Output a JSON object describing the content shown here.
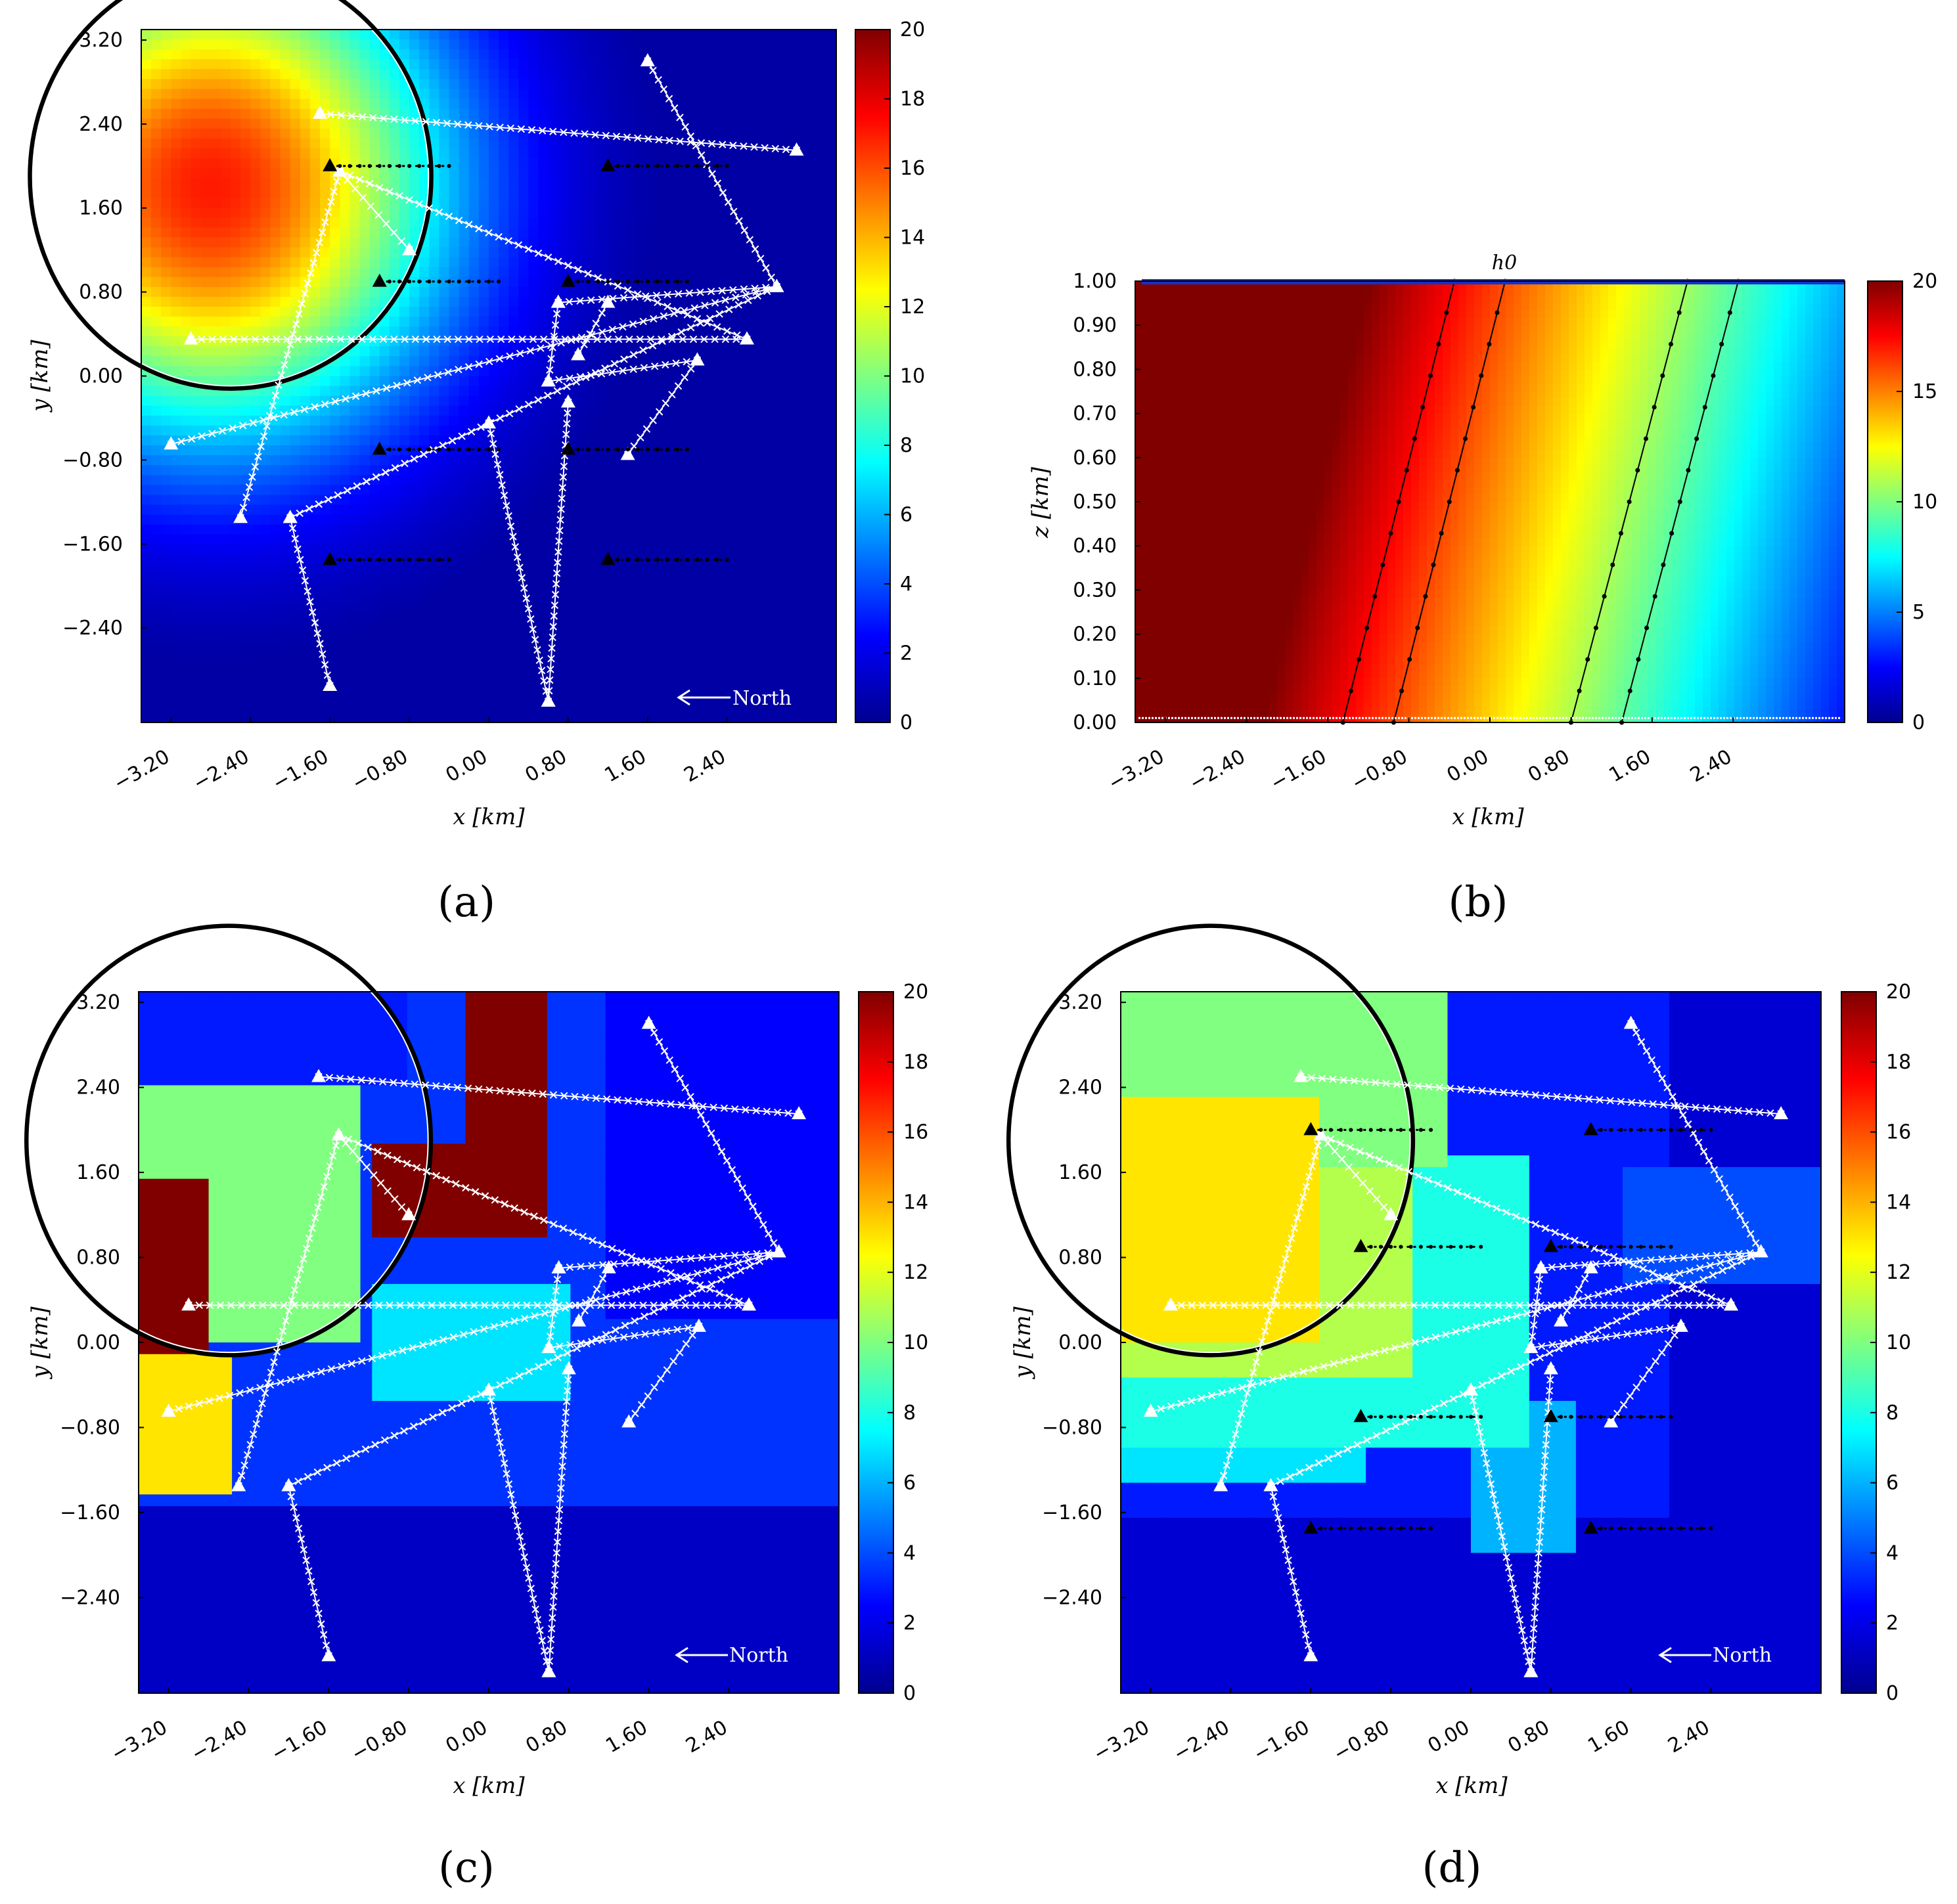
{
  "chart_data": [
    {
      "id": "a",
      "type": "heatmap",
      "caption": "(a)",
      "xlabel": "x [km]",
      "ylabel": "y [km]",
      "xticks": [
        "−3.20",
        "−2.40",
        "−1.60",
        "−0.80",
        "0.00",
        "0.80",
        "1.60",
        "2.40"
      ],
      "yticks": [
        "3.20",
        "2.40",
        "1.60",
        "0.80",
        "0.00",
        "−0.80",
        "−1.60",
        "−2.40"
      ],
      "xlim": [
        -3.2,
        3.2
      ],
      "ylim": [
        -3.2,
        3.2
      ],
      "colorbar": {
        "min": 0,
        "max": 20,
        "ticks": [
          "0",
          "2",
          "4",
          "6",
          "8",
          "10",
          "12",
          "14",
          "16",
          "18",
          "20"
        ]
      },
      "field": "smooth",
      "north_label": "North",
      "show_sources": true,
      "circle": true
    },
    {
      "id": "b",
      "type": "heatmap",
      "caption": "(b)",
      "title": "h0",
      "xlabel": "x [km]",
      "ylabel": "z [km]",
      "xticks": [
        "−3.20",
        "−2.40",
        "−1.60",
        "−0.80",
        "0.00",
        "0.80",
        "1.60",
        "2.40"
      ],
      "yticks": [
        "1.00",
        "0.90",
        "0.80",
        "0.70",
        "0.60",
        "0.50",
        "0.40",
        "0.30",
        "0.20",
        "0.10",
        "0.00"
      ],
      "xlim": [
        -3.2,
        3.2
      ],
      "ylim": [
        0,
        1
      ],
      "colorbar": {
        "min": 0,
        "max": 20,
        "ticks": [
          "20",
          "15",
          "10",
          "5",
          "0"
        ]
      },
      "field": "vertical"
    },
    {
      "id": "c",
      "type": "heatmap",
      "caption": "(c)",
      "xlabel": "x [km]",
      "ylabel": "y [km]",
      "xticks": [
        "−3.20",
        "−2.40",
        "−1.60",
        "−0.80",
        "0.00",
        "0.80",
        "1.60",
        "2.40"
      ],
      "yticks": [
        "3.20",
        "2.40",
        "1.60",
        "0.80",
        "0.00",
        "−0.80",
        "−1.60",
        "−2.40"
      ],
      "xlim": [
        -3.2,
        3.2
      ],
      "ylim": [
        -3.2,
        3.2
      ],
      "colorbar": {
        "min": 0,
        "max": 20,
        "ticks": [
          "0",
          "2",
          "4",
          "6",
          "8",
          "10",
          "12",
          "14",
          "16",
          "18",
          "20"
        ]
      },
      "field": "blocky_c",
      "north_label": "North",
      "show_sources": false,
      "circle": true
    },
    {
      "id": "d",
      "type": "heatmap",
      "caption": "(d)",
      "xlabel": "x [km]",
      "ylabel": "y [km]",
      "xticks": [
        "−3.20",
        "−2.40",
        "−1.60",
        "−0.80",
        "0.00",
        "0.80",
        "1.60",
        "2.40"
      ],
      "yticks": [
        "3.20",
        "2.40",
        "1.60",
        "0.80",
        "0.00",
        "−0.80",
        "−1.60",
        "−2.40"
      ],
      "xlim": [
        -3.2,
        3.2
      ],
      "ylim": [
        -3.2,
        3.2
      ],
      "colorbar": {
        "min": 0,
        "max": 20,
        "ticks": [
          "0",
          "2",
          "4",
          "6",
          "8",
          "10",
          "12",
          "14",
          "16",
          "18",
          "20"
        ]
      },
      "field": "blocky_d",
      "north_label": "North",
      "show_sources": true,
      "circle": true
    }
  ],
  "survey": {
    "profiles": [
      [
        [
          -1.7,
          2.5
        ],
        [
          3.1,
          2.15
        ]
      ],
      [
        [
          -1.5,
          1.95
        ],
        [
          -2.5,
          -1.35
        ]
      ],
      [
        [
          -1.5,
          1.95
        ],
        [
          -0.8,
          1.2
        ]
      ],
      [
        [
          -1.5,
          1.95
        ],
        [
          2.6,
          0.35
        ]
      ],
      [
        [
          -3.0,
          0.35
        ],
        [
          2.6,
          0.35
        ]
      ],
      [
        [
          -3.2,
          -0.65
        ],
        [
          2.9,
          0.85
        ]
      ],
      [
        [
          -2.0,
          -1.35
        ],
        [
          2.9,
          0.85
        ]
      ],
      [
        [
          1.6,
          3.0
        ],
        [
          2.9,
          0.85
        ]
      ],
      [
        [
          -2.0,
          -1.35
        ],
        [
          -1.6,
          -2.95
        ]
      ],
      [
        [
          0.0,
          -0.45
        ],
        [
          0.6,
          -3.1
        ]
      ],
      [
        [
          0.8,
          -0.25
        ],
        [
          0.6,
          -3.1
        ]
      ],
      [
        [
          0.6,
          -0.05
        ],
        [
          0.7,
          0.7
        ]
      ],
      [
        [
          0.6,
          -0.05
        ],
        [
          2.1,
          0.15
        ]
      ],
      [
        [
          1.4,
          -0.75
        ],
        [
          2.1,
          0.15
        ]
      ],
      [
        [
          0.7,
          0.7
        ],
        [
          2.9,
          0.85
        ]
      ],
      [
        [
          0.9,
          0.2
        ],
        [
          1.2,
          0.7
        ]
      ]
    ],
    "sources": [
      [
        -1.6,
        2.0
      ],
      [
        1.2,
        2.0
      ],
      [
        -1.1,
        0.9
      ],
      [
        0.8,
        0.9
      ],
      [
        -1.1,
        -0.7
      ],
      [
        0.8,
        -0.7
      ],
      [
        -1.6,
        -1.75
      ],
      [
        1.2,
        -1.75
      ]
    ],
    "source_length": 1.2,
    "circle": {
      "cx": -2.6,
      "cy": 1.9,
      "r": 2.0
    }
  },
  "field_b_lines": [
    {
      "x_bottom": -1.45,
      "x_top": -0.35
    },
    {
      "x_bottom": -0.95,
      "x_top": 0.15
    },
    {
      "x_bottom": 0.8,
      "x_top": 1.95
    },
    {
      "x_bottom": 1.3,
      "x_top": 2.45
    }
  ]
}
